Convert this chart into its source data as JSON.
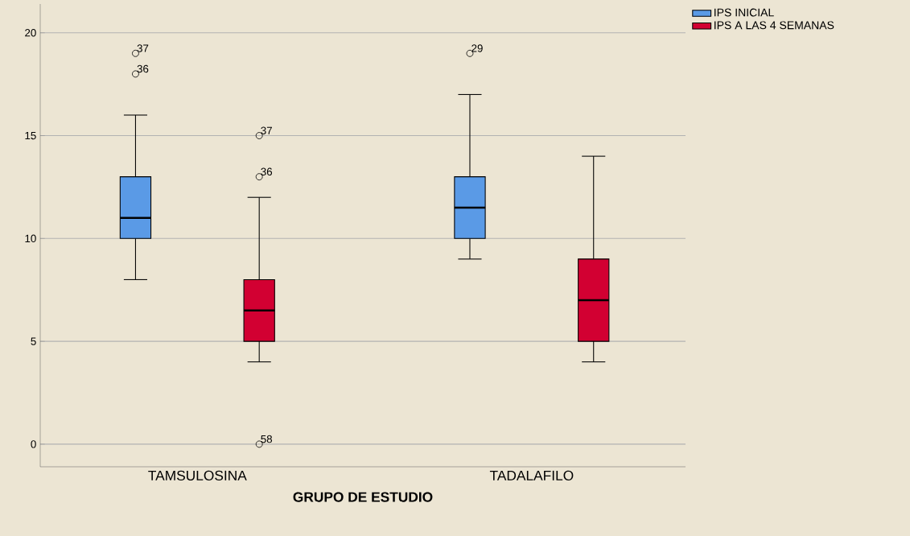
{
  "chart_data": {
    "type": "box",
    "xlabel": "GRUPO DE ESTUDIO",
    "categories": [
      "TAMSULOSINA",
      "TADALAFILO"
    ],
    "series": [
      {
        "name": "IPS INICIAL",
        "color": "#5a9ae6",
        "boxes": [
          {
            "low": 8,
            "q1": 10,
            "median": 11,
            "q3": 13,
            "high": 16,
            "outliers": [
              18,
              19
            ]
          },
          {
            "low": 9,
            "q1": 10,
            "median": 11.5,
            "q3": 13,
            "high": 17,
            "outliers": [
              19
            ]
          }
        ]
      },
      {
        "name": "IPS A LAS 4 SEMANAS",
        "color": "#d20032",
        "boxes": [
          {
            "low": 4,
            "q1": 5,
            "median": 6.5,
            "q3": 8,
            "high": 12,
            "outliers": [
              0,
              13,
              15
            ]
          },
          {
            "low": 4,
            "q1": 5,
            "median": 7,
            "q3": 9,
            "high": 14
          }
        ]
      }
    ],
    "ylim": [
      -1.1,
      21.4
    ],
    "yticks": [
      0,
      5,
      10,
      15,
      20
    ],
    "grid": "y",
    "legend": "top right",
    "marker": "circle",
    "annotations": [
      "36",
      "37",
      "29",
      "58",
      "36",
      "37"
    ]
  }
}
